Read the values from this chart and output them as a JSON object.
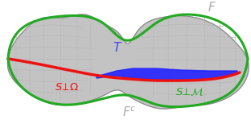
{
  "title": "",
  "bg_color": "#ffffff",
  "surface_color": "#b0b0b0",
  "surface_edge_color": "#d8d8d8",
  "surface_alpha": 0.85,
  "green_curve_color": "#22aa22",
  "red_curve_color": "#ee1111",
  "blue_fill_color": "#2222ff",
  "label_F": "F",
  "label_Fc": "F^c",
  "label_T": "T",
  "label_S_Omega": "S \\perp \\Omega",
  "label_S_M": "S \\perp \\mathcal{M}",
  "F_color": "#aaaaaa",
  "Fc_color": "#aaaaaa",
  "T_color": "#4444ff",
  "S_Omega_color": "#ee1111",
  "S_M_color": "#22aa22"
}
